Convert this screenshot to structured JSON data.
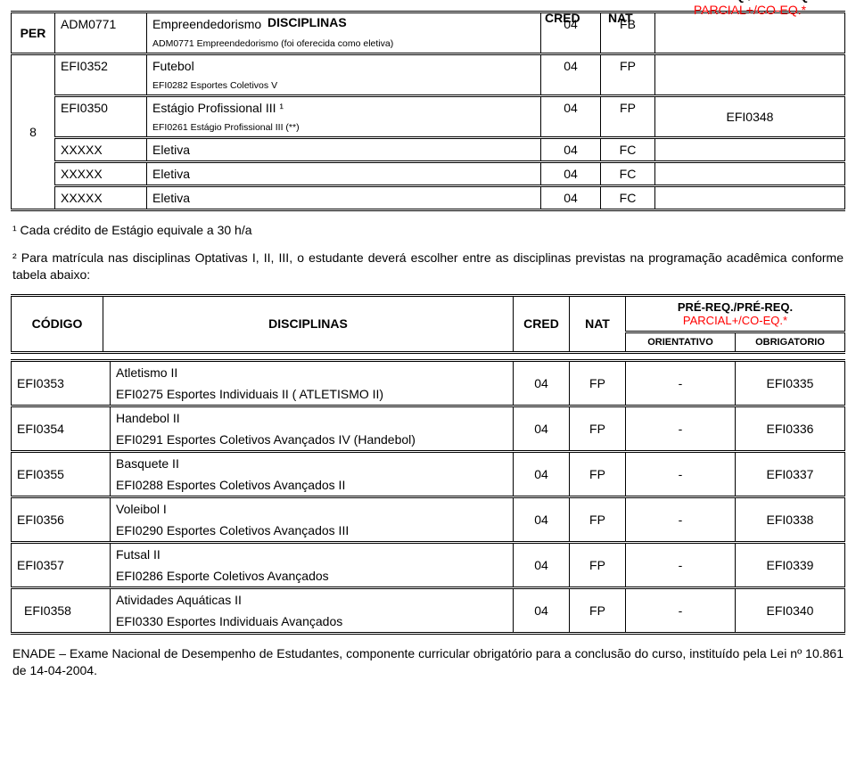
{
  "headers": {
    "per": "PER",
    "disciplinas": "DISCIPLINAS",
    "cred": "CRED",
    "nat": "NAT",
    "prereq_line1": "PRÉ-REQ./PRÉ-REQ.",
    "prereq_line2": "PARCIAL+/CO-EQ.*",
    "codigo": "CÓDIGO",
    "orientativo": "ORIENTATIVO",
    "obrigatorio": "OBRIGATORIO"
  },
  "period": "8",
  "rows": [
    {
      "code": "ADM0771",
      "title": "Empreendedorismo",
      "cred": "04",
      "nat": "FB",
      "req": "",
      "note": "ADM0771 Empreendedorismo (foi oferecida como eletiva)"
    },
    {
      "code": "EFI0352",
      "title": "Futebol",
      "cred": "04",
      "nat": "FP",
      "req": "",
      "note": "EFI0282 Esportes Coletivos V"
    },
    {
      "code": "EFI0350",
      "title": "Estágio Profissional III ¹",
      "cred": "04",
      "nat": "FP",
      "req": "EFI0348",
      "note": "EFI0261 Estágio Profissional III (**)"
    },
    {
      "code": "XXXXX",
      "title": "Eletiva",
      "cred": "04",
      "nat": "FC",
      "req": ""
    },
    {
      "code": "XXXXX",
      "title": "Eletiva",
      "cred": "04",
      "nat": "FC",
      "req": ""
    },
    {
      "code": "XXXXX",
      "title": "Eletiva",
      "cred": "04",
      "nat": "FC",
      "req": ""
    }
  ],
  "footnote1": "¹ Cada crédito de Estágio equivale a 30 h/a",
  "footnote2": "² Para matrícula nas disciplinas Optativas I, II, III, o estudante deverá escolher entre as disciplinas previstas na programação acadêmica conforme tabela abaixo:",
  "optativas": [
    {
      "code": "EFI0353",
      "title": "Atletismo II",
      "note": "EFI0275 Esportes Individuais II  ( ATLETISMO II)",
      "cred": "04",
      "nat": "FP",
      "or": "-",
      "ob": "EFI0335"
    },
    {
      "code": "EFI0354",
      "title": "Handebol II",
      "note": "EFI0291 Esportes Coletivos Avançados IV (Handebol)",
      "cred": "04",
      "nat": "FP",
      "or": "-",
      "ob": "EFI0336"
    },
    {
      "code": "EFI0355",
      "title": "Basquete II",
      "note": "EFI0288 Esportes Coletivos Avançados II",
      "cred": "04",
      "nat": "FP",
      "or": "-",
      "ob": "EFI0337"
    },
    {
      "code": "EFI0356",
      "title": "Voleibol I",
      "note": "EFI0290 Esportes Coletivos Avançados III",
      "cred": "04",
      "nat": "FP",
      "or": "-",
      "ob": "EFI0338"
    },
    {
      "code": "EFI0357",
      "title": "Futsal II",
      "note": "EFI0286 Esporte Coletivos Avançados",
      "cred": "04",
      "nat": "FP",
      "or": "-",
      "ob": "EFI0339"
    },
    {
      "code": "EFI0358",
      "title": "Atividades Aquáticas II",
      "note": "EFI0330 Esportes Individuais Avançados",
      "cred": "04",
      "nat": "FP",
      "or": "-",
      "ob": "EFI0340",
      "indent": true
    }
  ],
  "enade": "ENADE – Exame Nacional de Desempenho de Estudantes, componente curricular obrigatório para a conclusão do curso, instituído pela Lei nº 10.861 de 14-04-2004."
}
